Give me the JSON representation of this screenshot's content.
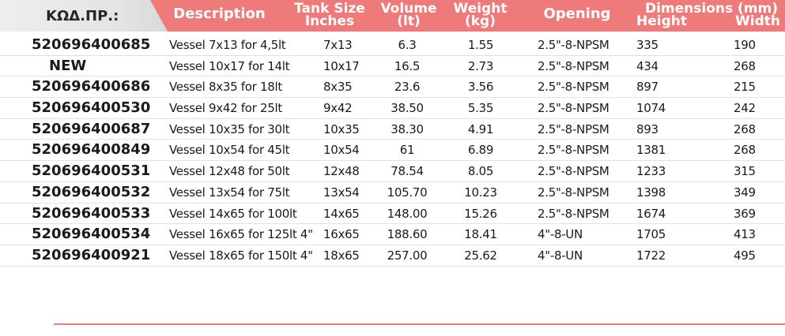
{
  "header": {
    "code": "ΚΩΔ.ΠΡ.:",
    "description": "Description",
    "tank_size_1": "Tank Size",
    "tank_size_2": "Inches",
    "volume_1": "Volume",
    "volume_2": "(lt)",
    "weight_1": "Weight",
    "weight_2": "(kg)",
    "opening": "Opening",
    "dimensions": "Dimensions (mm)",
    "height": "Height",
    "width": "Width"
  },
  "colors": {
    "header_bg": "#ee7a79",
    "code_tab_bg": "#e6e6e6",
    "text": "#1a1a1a"
  },
  "rows": [
    {
      "code": "520696400685",
      "desc": "Vessel 7x13 for 4,5lt",
      "tank": "7x13",
      "vol": "6.3",
      "wt": "1.55",
      "open": "2.5\"-8-NPSM",
      "h": "335",
      "w": "190"
    },
    {
      "code": "NEW",
      "desc": "Vessel 10x17 for 14lt",
      "tank": "10x17",
      "vol": "16.5",
      "wt": "2.73",
      "open": "2.5\"-8-NPSM",
      "h": "434",
      "w": "268"
    },
    {
      "code": "520696400686",
      "desc": "Vessel 8x35 for 18lt",
      "tank": "8x35",
      "vol": "23.6",
      "wt": "3.56",
      "open": "2.5\"-8-NPSM",
      "h": "897",
      "w": "215"
    },
    {
      "code": "520696400530",
      "desc": "Vessel 9x42 for 25lt",
      "tank": "9x42",
      "vol": "38.50",
      "wt": "5.35",
      "open": "2.5\"-8-NPSM",
      "h": "1074",
      "w": "242"
    },
    {
      "code": "520696400687",
      "desc": "Vessel 10x35 for 30lt",
      "tank": "10x35",
      "vol": "38.30",
      "wt": "4.91",
      "open": "2.5\"-8-NPSM",
      "h": "893",
      "w": "268"
    },
    {
      "code": "520696400849",
      "desc": "Vessel 10x54 for 45lt",
      "tank": "10x54",
      "vol": "61",
      "wt": "6.89",
      "open": "2.5\"-8-NPSM",
      "h": "1381",
      "w": "268"
    },
    {
      "code": "520696400531",
      "desc": "Vessel 12x48 for 50lt",
      "tank": "12x48",
      "vol": "78.54",
      "wt": "8.05",
      "open": "2.5\"-8-NPSM",
      "h": "1233",
      "w": "315"
    },
    {
      "code": "520696400532",
      "desc": "Vessel 13x54  for 75lt",
      "tank": "13x54",
      "vol": "105.70",
      "wt": "10.23",
      "open": "2.5\"-8-NPSM",
      "h": "1398",
      "w": "349"
    },
    {
      "code": "520696400533",
      "desc": "Vessel 14x65 for 100lt",
      "tank": "14x65",
      "vol": "148.00",
      "wt": "15.26",
      "open": "2.5\"-8-NPSM",
      "h": "1674",
      "w": "369"
    },
    {
      "code": "520696400534",
      "desc": "Vessel 16x65 for 125lt 4\"",
      "tank": "16x65",
      "vol": "188.60",
      "wt": "18.41",
      "open": "4\"-8-UN",
      "h": "1705",
      "w": "413"
    },
    {
      "code": "520696400921",
      "desc": "Vessel 18x65 for 150lt 4\"",
      "tank": "18x65",
      "vol": "257.00",
      "wt": "25.62",
      "open": "4\"-8-UN",
      "h": "1722",
      "w": "495"
    }
  ]
}
